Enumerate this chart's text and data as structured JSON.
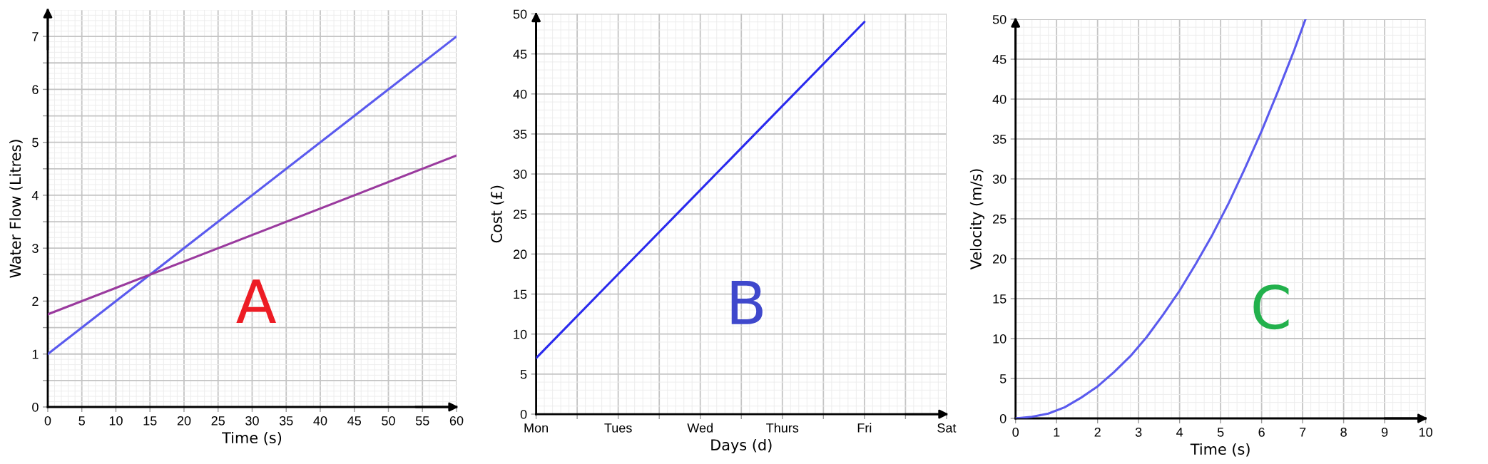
{
  "chart_data": [
    {
      "type": "line",
      "xlabel": "Time (s)",
      "ylabel": "Water Flow (Litres)",
      "annotations": [
        "A"
      ],
      "xlim": [
        0,
        60
      ],
      "ylim": [
        0,
        7.5
      ],
      "xticks": [
        0,
        5,
        10,
        15,
        20,
        25,
        30,
        35,
        40,
        45,
        50,
        55,
        60
      ],
      "yticks": [
        0,
        {
          "value": 0.5,
          "label": null
        },
        1,
        {
          "value": 1.5,
          "label": null
        },
        2,
        {
          "value": 2.5,
          "label": null
        },
        3,
        {
          "value": 3.5,
          "label": null
        },
        4,
        {
          "value": 4.5,
          "label": null
        },
        5,
        {
          "value": 5.5,
          "label": null
        },
        6,
        {
          "value": 6.5,
          "label": null
        },
        7
      ],
      "grid": true,
      "line_style": "solid",
      "series": [
        {
          "color": "#5a5aee",
          "x": [
            0,
            60
          ],
          "values": [
            1,
            7
          ]
        },
        {
          "color": "#9a3a9e",
          "x": [
            0,
            60
          ],
          "values": [
            1.75,
            4.75
          ]
        }
      ]
    },
    {
      "type": "line",
      "xlabel": "Days (d)",
      "ylabel": "Cost (£)",
      "annotations": [
        "B"
      ],
      "categories": [
        "Mon",
        "Tues",
        "Wed",
        "Thurs",
        "Fri",
        "Sat"
      ],
      "ylim": [
        0,
        50
      ],
      "yticks": [
        0,
        5,
        10,
        15,
        20,
        25,
        30,
        35,
        40,
        45,
        50
      ],
      "grid": true,
      "line_style": "solid",
      "series": [
        {
          "color": "#2a2aee",
          "values": [
            7,
            17.5,
            28,
            38.5,
            49,
            null
          ]
        }
      ]
    },
    {
      "type": "line",
      "xlabel": "Time (s)",
      "ylabel": "Velocity (m/s)",
      "annotations": [
        "C"
      ],
      "xlim": [
        0,
        10
      ],
      "ylim": [
        0,
        50
      ],
      "xticks": [
        0,
        1,
        2,
        3,
        4,
        5,
        6,
        7,
        8,
        9,
        10
      ],
      "yticks": [
        0,
        5,
        10,
        15,
        20,
        25,
        30,
        35,
        40,
        45,
        50
      ],
      "grid": true,
      "line_style": "solid",
      "series": [
        {
          "color": "#5a5aee",
          "x": [
            0,
            0.4,
            0.8,
            1.2,
            1.6,
            2,
            2.4,
            2.8,
            3.2,
            3.6,
            4,
            4.4,
            4.8,
            5.2,
            5.6,
            6,
            6.4,
            6.8,
            7.07
          ],
          "values": [
            0,
            0.2,
            0.6,
            1.4,
            2.6,
            4,
            5.8,
            7.8,
            10.2,
            13,
            16,
            19.4,
            23,
            27,
            31.4,
            36,
            41,
            46.2,
            50
          ]
        }
      ]
    }
  ]
}
